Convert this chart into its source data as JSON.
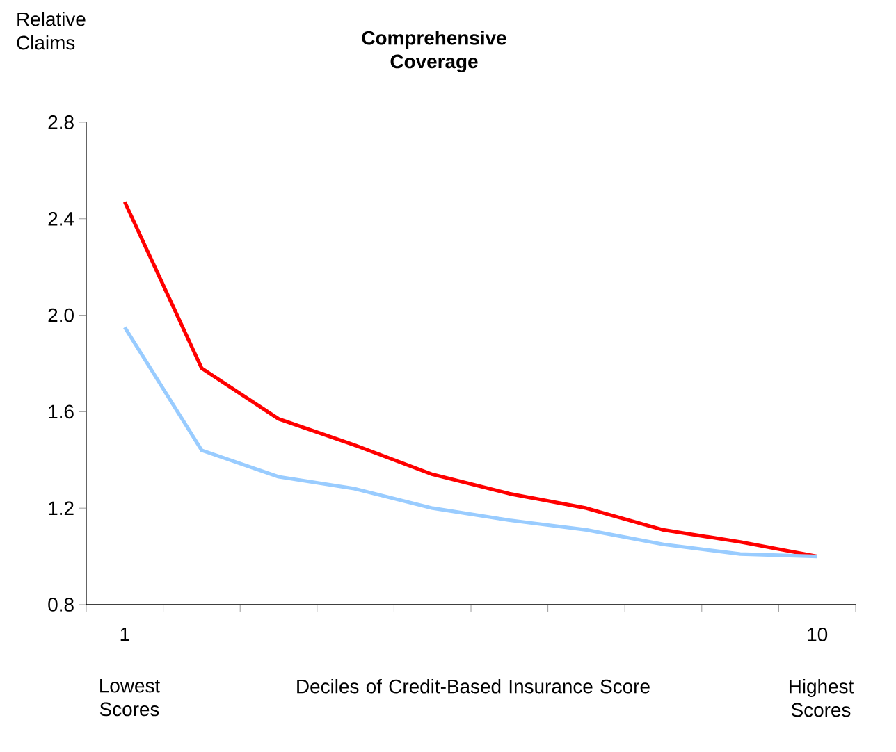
{
  "chart_data": {
    "type": "line",
    "title": "Comprehensive Coverage",
    "ylabel": "Relative Claims",
    "xlabel": "Deciles of Credit-Based Insurance Score",
    "categories": [
      "1",
      null,
      null,
      null,
      null,
      null,
      null,
      null,
      null,
      "10"
    ],
    "annotations": [
      "Lowest Scores",
      "Highest Scores"
    ],
    "series": [
      {
        "color": "#ff0000",
        "values": [
          2.47,
          1.78,
          1.57,
          1.46,
          1.34,
          1.26,
          1.2,
          1.11,
          1.06,
          1.0
        ]
      },
      {
        "color": "#99ccff",
        "values": [
          1.95,
          1.44,
          1.33,
          1.28,
          1.2,
          1.15,
          1.11,
          1.05,
          1.01,
          1.0
        ]
      }
    ],
    "ylim": [
      0.8,
      2.8
    ],
    "yticks": [
      0.8,
      1.2,
      1.6,
      {
        "value": 2.0,
        "label": "2.0"
      },
      2.4,
      2.8
    ],
    "grid": false,
    "marker": "none",
    "line_style": "solid"
  }
}
